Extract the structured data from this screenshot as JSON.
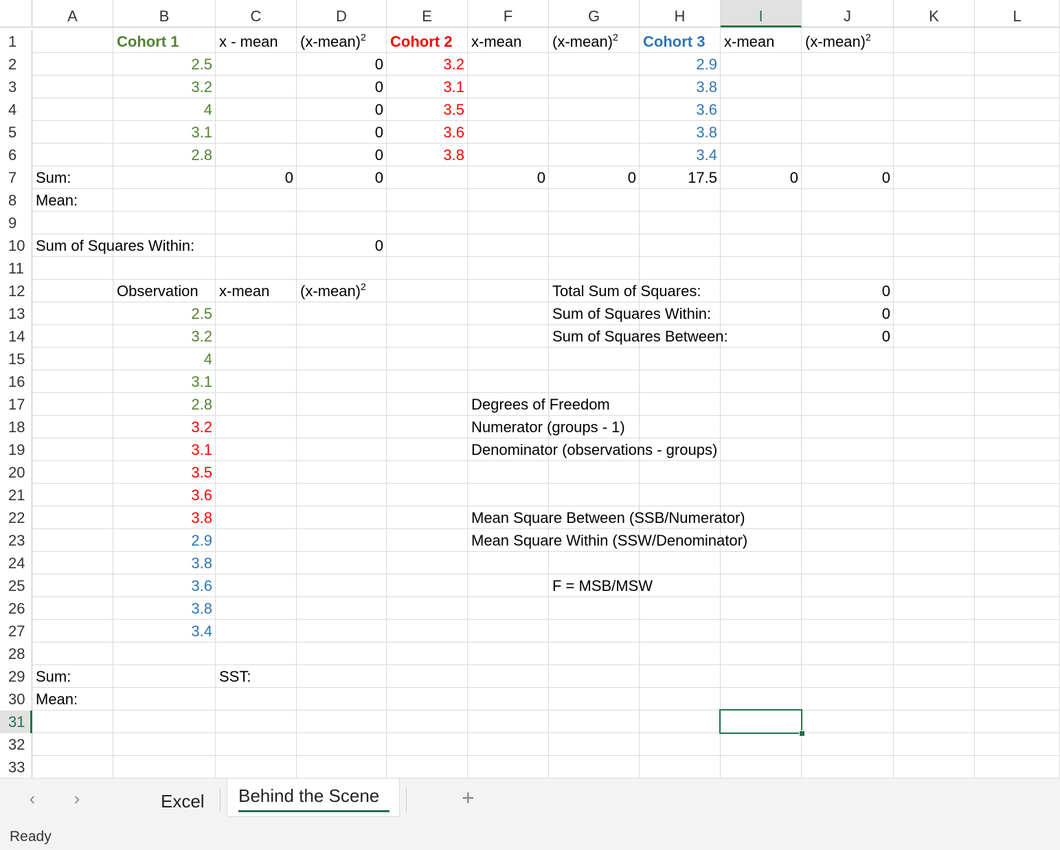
{
  "columns": [
    "A",
    "B",
    "C",
    "D",
    "E",
    "F",
    "G",
    "H",
    "I",
    "J",
    "K",
    "L"
  ],
  "rows": [
    "1",
    "2",
    "3",
    "4",
    "5",
    "6",
    "7",
    "8",
    "9",
    "10",
    "11",
    "12",
    "13",
    "14",
    "15",
    "16",
    "17",
    "18",
    "19",
    "20",
    "21",
    "22",
    "23",
    "24",
    "25",
    "26",
    "27",
    "28",
    "29",
    "30",
    "31",
    "32",
    "33"
  ],
  "selected_cell": {
    "column": "I",
    "row": "31"
  },
  "cells": [
    {
      "ref": "B1",
      "text": "Cohort 1",
      "align": "l",
      "style": "green b"
    },
    {
      "ref": "C1",
      "text": "x - mean",
      "align": "l"
    },
    {
      "ref": "D1",
      "text": "(x-mean)",
      "sup": "2",
      "align": "l"
    },
    {
      "ref": "E1",
      "text": "Cohort 2",
      "align": "l",
      "style": "red b"
    },
    {
      "ref": "F1",
      "text": "x-mean",
      "align": "l"
    },
    {
      "ref": "G1",
      "text": "(x-mean)",
      "sup": "2",
      "align": "l"
    },
    {
      "ref": "H1",
      "text": "Cohort 3",
      "align": "l",
      "style": "blue b"
    },
    {
      "ref": "I1",
      "text": "x-mean",
      "align": "l"
    },
    {
      "ref": "J1",
      "text": "(x-mean)",
      "sup": "2",
      "align": "l"
    },
    {
      "ref": "B2",
      "text": "2.5",
      "align": "r",
      "style": "green"
    },
    {
      "ref": "D2",
      "text": "0",
      "align": "r"
    },
    {
      "ref": "E2",
      "text": "3.2",
      "align": "r",
      "style": "red"
    },
    {
      "ref": "H2",
      "text": "2.9",
      "align": "r",
      "style": "blue"
    },
    {
      "ref": "B3",
      "text": "3.2",
      "align": "r",
      "style": "green"
    },
    {
      "ref": "D3",
      "text": "0",
      "align": "r"
    },
    {
      "ref": "E3",
      "text": "3.1",
      "align": "r",
      "style": "red"
    },
    {
      "ref": "H3",
      "text": "3.8",
      "align": "r",
      "style": "blue"
    },
    {
      "ref": "B4",
      "text": "4",
      "align": "r",
      "style": "green"
    },
    {
      "ref": "D4",
      "text": "0",
      "align": "r"
    },
    {
      "ref": "E4",
      "text": "3.5",
      "align": "r",
      "style": "red"
    },
    {
      "ref": "H4",
      "text": "3.6",
      "align": "r",
      "style": "blue"
    },
    {
      "ref": "B5",
      "text": "3.1",
      "align": "r",
      "style": "green"
    },
    {
      "ref": "D5",
      "text": "0",
      "align": "r"
    },
    {
      "ref": "E5",
      "text": "3.6",
      "align": "r",
      "style": "red"
    },
    {
      "ref": "H5",
      "text": "3.8",
      "align": "r",
      "style": "blue"
    },
    {
      "ref": "B6",
      "text": "2.8",
      "align": "r",
      "style": "green"
    },
    {
      "ref": "D6",
      "text": "0",
      "align": "r"
    },
    {
      "ref": "E6",
      "text": "3.8",
      "align": "r",
      "style": "red"
    },
    {
      "ref": "H6",
      "text": "3.4",
      "align": "r",
      "style": "blue"
    },
    {
      "ref": "A7",
      "text": "Sum:",
      "align": "l"
    },
    {
      "ref": "C7",
      "text": "0",
      "align": "r"
    },
    {
      "ref": "D7",
      "text": "0",
      "align": "r"
    },
    {
      "ref": "F7",
      "text": "0",
      "align": "r"
    },
    {
      "ref": "G7",
      "text": "0",
      "align": "r"
    },
    {
      "ref": "H7",
      "text": "17.5",
      "align": "r"
    },
    {
      "ref": "I7",
      "text": "0",
      "align": "r"
    },
    {
      "ref": "J7",
      "text": "0",
      "align": "r"
    },
    {
      "ref": "A8",
      "text": "Mean:",
      "align": "l"
    },
    {
      "ref": "A10",
      "text": "Sum of Squares Within:",
      "align": "l"
    },
    {
      "ref": "D10",
      "text": "0",
      "align": "r"
    },
    {
      "ref": "B12",
      "text": "Observation",
      "align": "l"
    },
    {
      "ref": "C12",
      "text": "x-mean",
      "align": "l"
    },
    {
      "ref": "D12",
      "text": "(x-mean)",
      "sup": "2",
      "align": "l"
    },
    {
      "ref": "G12",
      "text": "Total Sum of Squares:",
      "align": "l"
    },
    {
      "ref": "J12",
      "text": "0",
      "align": "r"
    },
    {
      "ref": "B13",
      "text": "2.5",
      "align": "r",
      "style": "green"
    },
    {
      "ref": "G13",
      "text": "Sum of Squares Within:",
      "align": "l"
    },
    {
      "ref": "J13",
      "text": "0",
      "align": "r"
    },
    {
      "ref": "B14",
      "text": "3.2",
      "align": "r",
      "style": "green"
    },
    {
      "ref": "G14",
      "text": "Sum of Squares Between:",
      "align": "l"
    },
    {
      "ref": "J14",
      "text": "0",
      "align": "r"
    },
    {
      "ref": "B15",
      "text": "4",
      "align": "r",
      "style": "green"
    },
    {
      "ref": "B16",
      "text": "3.1",
      "align": "r",
      "style": "green"
    },
    {
      "ref": "B17",
      "text": "2.8",
      "align": "r",
      "style": "green"
    },
    {
      "ref": "F17",
      "text": "Degrees of Freedom",
      "align": "l"
    },
    {
      "ref": "B18",
      "text": "3.2",
      "align": "r",
      "style": "red"
    },
    {
      "ref": "F18",
      "text": "Numerator (groups - 1)",
      "align": "l"
    },
    {
      "ref": "B19",
      "text": "3.1",
      "align": "r",
      "style": "red"
    },
    {
      "ref": "F19",
      "text": "Denominator (observations - groups)",
      "align": "l"
    },
    {
      "ref": "B20",
      "text": "3.5",
      "align": "r",
      "style": "red"
    },
    {
      "ref": "B21",
      "text": "3.6",
      "align": "r",
      "style": "red"
    },
    {
      "ref": "B22",
      "text": "3.8",
      "align": "r",
      "style": "red"
    },
    {
      "ref": "F22",
      "text": "Mean Square Between (SSB/Numerator)",
      "align": "l"
    },
    {
      "ref": "B23",
      "text": "2.9",
      "align": "r",
      "style": "blue"
    },
    {
      "ref": "F23",
      "text": "Mean Square Within (SSW/Denominator)",
      "align": "l"
    },
    {
      "ref": "B24",
      "text": "3.8",
      "align": "r",
      "style": "blue"
    },
    {
      "ref": "B25",
      "text": "3.6",
      "align": "r",
      "style": "blue"
    },
    {
      "ref": "G25",
      "text": "F = MSB/MSW",
      "align": "l"
    },
    {
      "ref": "B26",
      "text": "3.8",
      "align": "r",
      "style": "blue"
    },
    {
      "ref": "B27",
      "text": "3.4",
      "align": "r",
      "style": "blue"
    },
    {
      "ref": "A29",
      "text": "Sum:",
      "align": "l"
    },
    {
      "ref": "C29",
      "text": "SST:",
      "align": "l"
    },
    {
      "ref": "A30",
      "text": "Mean:",
      "align": "l"
    }
  ],
  "tabs": {
    "prev_icon": "chevron-left-icon",
    "next_icon": "chevron-right-icon",
    "sheets": [
      {
        "label": "Excel",
        "active": false
      },
      {
        "label": "Behind the Scene",
        "active": true
      }
    ],
    "add_sheet": "+"
  },
  "status": {
    "text": "Ready"
  },
  "colors": {
    "accent": "#217346",
    "cohort1": "#548235",
    "cohort2": "#ff0000",
    "cohort3": "#2e75b6"
  }
}
